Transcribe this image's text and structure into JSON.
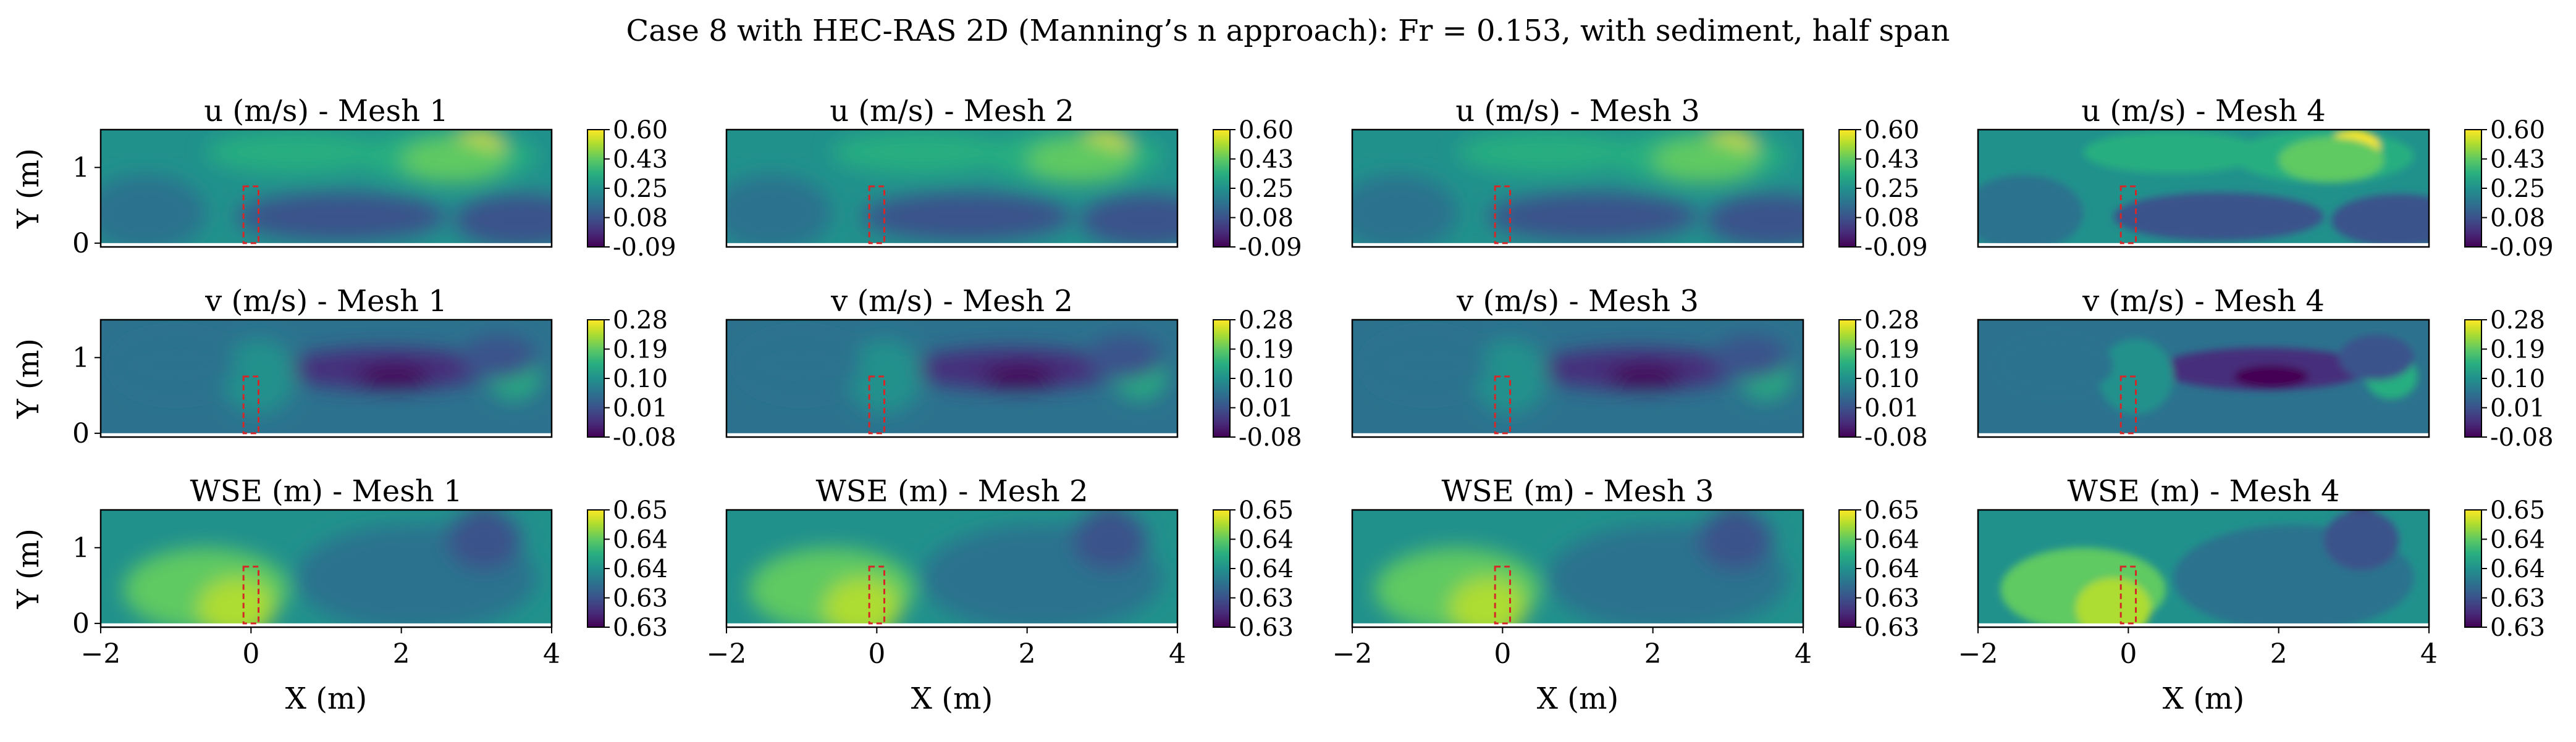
{
  "figure": {
    "suptitle": "Case 8 with HEC-RAS 2D (Manning’s n approach): Fr = 0.153, with sediment, half span"
  },
  "chart_data": {
    "type": "heatmap",
    "layout": "3 rows x 4 columns",
    "colormap": "viridis",
    "xlabel": "X (m)",
    "ylabel": "Y (m)",
    "xlim": [
      -2,
      4
    ],
    "ylim": [
      -0.05,
      1.5
    ],
    "xticks": [
      "−2",
      "0",
      "2",
      "4"
    ],
    "yticks": [
      "0",
      "1"
    ],
    "obstacle": {
      "x": [
        -0.1,
        0.1
      ],
      "y": [
        0.0,
        0.75
      ],
      "color": "#d62728",
      "style": "dashed"
    },
    "columns": [
      "Mesh 1",
      "Mesh 2",
      "Mesh 3",
      "Mesh 4"
    ],
    "rows": [
      {
        "variable": "u",
        "titles": [
          "u (m/s) - Mesh 1",
          "u (m/s) - Mesh 2",
          "u (m/s) - Mesh 3",
          "u (m/s) - Mesh 4"
        ],
        "colorbar_ticks": [
          "0.60",
          "0.43",
          "0.25",
          "0.08",
          "-0.09"
        ],
        "range": [
          -0.09,
          0.6
        ]
      },
      {
        "variable": "v",
        "titles": [
          "v (m/s) - Mesh 1",
          "v (m/s) - Mesh 2",
          "v (m/s) - Mesh 3",
          "v (m/s) - Mesh 4"
        ],
        "colorbar_ticks": [
          "0.28",
          "0.19",
          "0.10",
          "0.01",
          "-0.08"
        ],
        "range": [
          -0.08,
          0.28
        ]
      },
      {
        "variable": "wse",
        "titles": [
          "WSE (m) - Mesh 1",
          "WSE (m) - Mesh 2",
          "WSE (m) - Mesh 3",
          "WSE (m) - Mesh 4"
        ],
        "colorbar_ticks": [
          "0.65",
          "0.64",
          "0.64",
          "0.63",
          "0.63"
        ],
        "range": [
          0.63,
          0.65
        ]
      }
    ],
    "grid": false,
    "legend": "none"
  }
}
